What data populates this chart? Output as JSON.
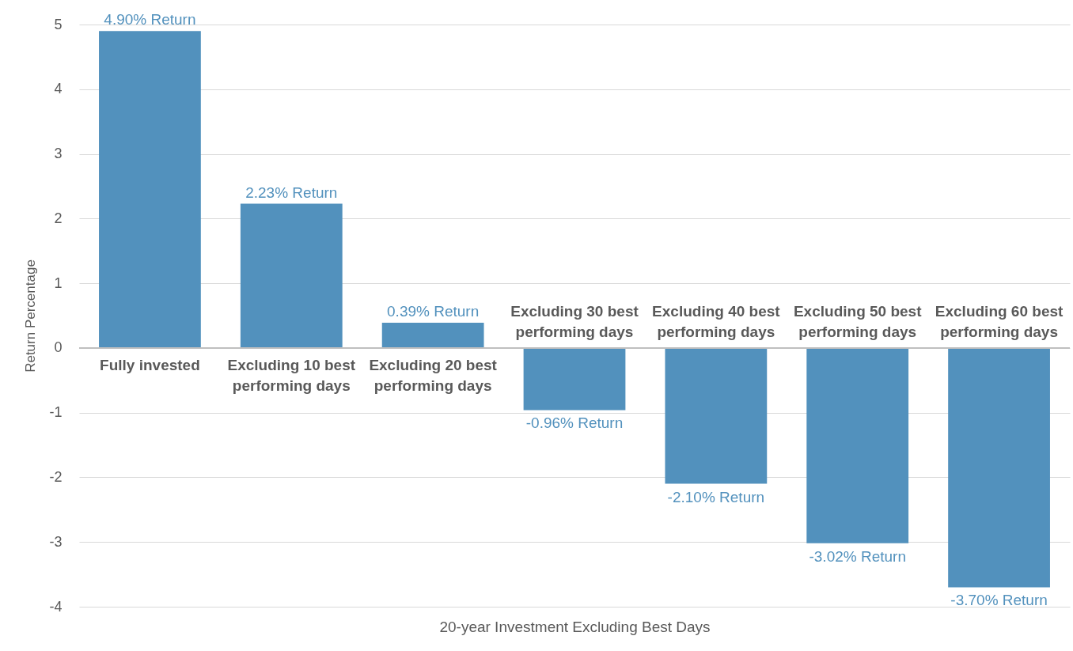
{
  "chart_data": {
    "type": "bar",
    "categories": [
      "Fully invested",
      "Excluding 10 best performing days",
      "Excluding 20 best performing days",
      "Excluding 30 best performing days",
      "Excluding 40 best performing days",
      "Excluding 50 best performing days",
      "Excluding 60 best performing days"
    ],
    "values": [
      4.9,
      2.23,
      0.39,
      -0.96,
      -2.1,
      -3.02,
      -3.7
    ],
    "value_labels": [
      "4.90% Return",
      "2.23% Return",
      "0.39% Return",
      "-0.96% Return",
      "-2.10% Return",
      "-3.02% Return",
      "-3.70% Return"
    ],
    "color": "#5291bd",
    "xlabel": "20-year Investment Excluding Best Days",
    "ylabel": "Return Percentage",
    "ylim": [
      -4,
      5
    ],
    "yticks": [
      -4,
      -3,
      -2,
      -1,
      0,
      1,
      2,
      3,
      4,
      5
    ],
    "grid": "y"
  }
}
